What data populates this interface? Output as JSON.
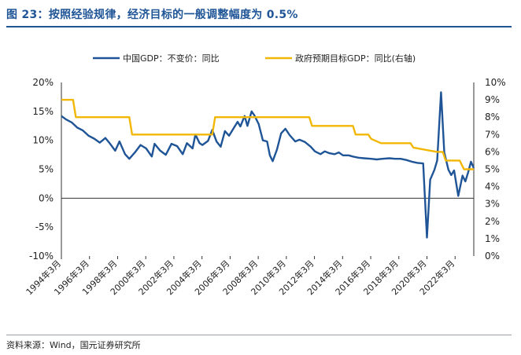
{
  "title": "图 23：按照经验规律，经济目标的一般调整幅度为 0.5%",
  "source": "资料来源：Wind，国元证券研究所",
  "colors": {
    "gdp": "#1f5597",
    "target": "#f2b705",
    "title": "#1f5597"
  },
  "chart_data": {
    "type": "line",
    "legend_position": "top-right",
    "grid": false,
    "y_left": {
      "ticks": [
        "20%",
        "15%",
        "10%",
        "5%",
        "0%",
        "-5%",
        "-10%"
      ],
      "range": [
        -10,
        20
      ]
    },
    "y_right": {
      "ticks": [
        "10%",
        "9%",
        "8%",
        "7%",
        "6%",
        "5%",
        "4%",
        "3%",
        "2%",
        "1%",
        "0%"
      ],
      "range": [
        0,
        10
      ]
    },
    "x_range": [
      1994.17,
      2023.5
    ],
    "x_ticks": [
      {
        "label": "1994年3月",
        "x": 1994.17
      },
      {
        "label": "1996年3月",
        "x": 1996.17
      },
      {
        "label": "1998年3月",
        "x": 1998.17
      },
      {
        "label": "2000年3月",
        "x": 2000.17
      },
      {
        "label": "2002年3月",
        "x": 2002.17
      },
      {
        "label": "2004年3月",
        "x": 2004.17
      },
      {
        "label": "2006年3月",
        "x": 2006.17
      },
      {
        "label": "2008年3月",
        "x": 2008.17
      },
      {
        "label": "2010年3月",
        "x": 2010.17
      },
      {
        "label": "2012年3月",
        "x": 2012.17
      },
      {
        "label": "2014年3月",
        "x": 2014.17
      },
      {
        "label": "2016年3月",
        "x": 2016.17
      },
      {
        "label": "2018年3月",
        "x": 2018.17
      },
      {
        "label": "2020年3月",
        "x": 2020.17
      },
      {
        "label": "2022年3月",
        "x": 2022.17
      }
    ],
    "series": [
      {
        "name": "中国GDP：不变价：同比",
        "axis": "left",
        "points": [
          [
            1994.17,
            14.2
          ],
          [
            1994.5,
            13.6
          ],
          [
            1994.9,
            13.1
          ],
          [
            1995.3,
            12.2
          ],
          [
            1995.7,
            11.7
          ],
          [
            1996.1,
            10.8
          ],
          [
            1996.5,
            10.3
          ],
          [
            1996.9,
            9.6
          ],
          [
            1997.3,
            10.4
          ],
          [
            1997.6,
            9.5
          ],
          [
            1998.0,
            8.2
          ],
          [
            1998.3,
            9.8
          ],
          [
            1998.7,
            7.6
          ],
          [
            1999.0,
            6.8
          ],
          [
            1999.4,
            7.9
          ],
          [
            1999.8,
            9.2
          ],
          [
            2000.2,
            8.6
          ],
          [
            2000.6,
            7.2
          ],
          [
            2000.8,
            9.4
          ],
          [
            2001.2,
            8.2
          ],
          [
            2001.6,
            7.5
          ],
          [
            2002.0,
            9.4
          ],
          [
            2002.4,
            9.0
          ],
          [
            2002.8,
            7.6
          ],
          [
            2003.1,
            9.5
          ],
          [
            2003.5,
            8.6
          ],
          [
            2003.7,
            11.0
          ],
          [
            2004.0,
            9.5
          ],
          [
            2004.2,
            9.2
          ],
          [
            2004.6,
            9.9
          ],
          [
            2004.9,
            11.8
          ],
          [
            2005.2,
            9.8
          ],
          [
            2005.5,
            8.9
          ],
          [
            2005.8,
            11.6
          ],
          [
            2006.1,
            10.8
          ],
          [
            2006.4,
            12.0
          ],
          [
            2006.7,
            13.2
          ],
          [
            2006.9,
            12.4
          ],
          [
            2007.2,
            14.2
          ],
          [
            2007.4,
            12.5
          ],
          [
            2007.7,
            15.0
          ],
          [
            2007.9,
            14.3
          ],
          [
            2008.2,
            12.8
          ],
          [
            2008.5,
            10.0
          ],
          [
            2008.8,
            9.8
          ],
          [
            2009.0,
            7.4
          ],
          [
            2009.2,
            6.4
          ],
          [
            2009.5,
            8.4
          ],
          [
            2009.8,
            11.2
          ],
          [
            2010.1,
            12.0
          ],
          [
            2010.4,
            10.9
          ],
          [
            2010.8,
            9.8
          ],
          [
            2011.1,
            10.1
          ],
          [
            2011.5,
            9.7
          ],
          [
            2011.9,
            8.9
          ],
          [
            2012.2,
            8.1
          ],
          [
            2012.6,
            7.6
          ],
          [
            2012.9,
            8.1
          ],
          [
            2013.2,
            7.8
          ],
          [
            2013.6,
            7.6
          ],
          [
            2013.9,
            7.9
          ],
          [
            2014.2,
            7.4
          ],
          [
            2014.6,
            7.4
          ],
          [
            2014.9,
            7.2
          ],
          [
            2015.3,
            7.0
          ],
          [
            2015.7,
            6.9
          ],
          [
            2016.2,
            6.8
          ],
          [
            2016.6,
            6.7
          ],
          [
            2017.0,
            6.8
          ],
          [
            2017.5,
            6.9
          ],
          [
            2017.9,
            6.8
          ],
          [
            2018.3,
            6.8
          ],
          [
            2018.7,
            6.6
          ],
          [
            2019.1,
            6.3
          ],
          [
            2019.5,
            6.1
          ],
          [
            2019.9,
            6.0
          ],
          [
            2020.17,
            -6.8
          ],
          [
            2020.4,
            3.2
          ],
          [
            2020.7,
            4.9
          ],
          [
            2020.9,
            6.5
          ],
          [
            2021.17,
            18.3
          ],
          [
            2021.4,
            7.9
          ],
          [
            2021.7,
            4.9
          ],
          [
            2021.9,
            4.0
          ],
          [
            2022.1,
            4.8
          ],
          [
            2022.4,
            0.4
          ],
          [
            2022.7,
            3.9
          ],
          [
            2022.9,
            2.9
          ],
          [
            2023.1,
            4.5
          ],
          [
            2023.3,
            6.3
          ],
          [
            2023.5,
            5.2
          ]
        ]
      },
      {
        "name": "政府预期目标GDP：同比(右轴)",
        "axis": "right",
        "points": [
          [
            1994.17,
            9.0
          ],
          [
            1995.0,
            9.0
          ],
          [
            1995.2,
            8.0
          ],
          [
            1999.0,
            8.0
          ],
          [
            1999.2,
            7.0
          ],
          [
            2004.9,
            7.0
          ],
          [
            2005.1,
            8.0
          ],
          [
            2011.8,
            8.0
          ],
          [
            2012.0,
            7.5
          ],
          [
            2014.9,
            7.5
          ],
          [
            2015.1,
            7.0
          ],
          [
            2016.0,
            7.0
          ],
          [
            2016.2,
            6.75
          ],
          [
            2016.9,
            6.5
          ],
          [
            2019.0,
            6.5
          ],
          [
            2019.2,
            6.25
          ],
          [
            2020.9,
            6.0
          ],
          [
            2021.3,
            6.0
          ],
          [
            2021.5,
            5.5
          ],
          [
            2022.5,
            5.5
          ],
          [
            2022.8,
            5.0
          ],
          [
            2023.5,
            5.0
          ]
        ]
      }
    ]
  }
}
